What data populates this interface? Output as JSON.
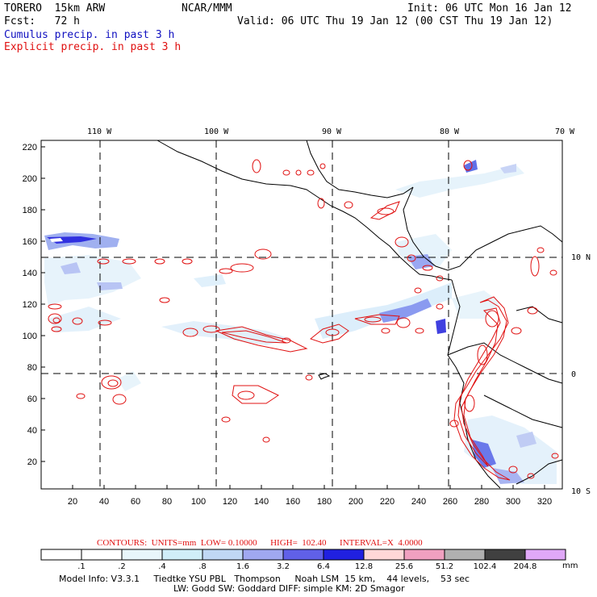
{
  "header": {
    "model": "TORERO  15km ARW",
    "org": "NCAR/MMM",
    "init": "Init: 06 UTC Mon 16 Jan 12",
    "fcst": "Fcst:   72 h",
    "valid": "Valid: 06 UTC Thu 19 Jan 12 (00 CST Thu 19 Jan 12)",
    "legend_cumulus": "Cumulus precip. in past 3 h",
    "legend_explicit": "Explicit precip. in past 3 h"
  },
  "axes": {
    "top_lon_labels": [
      "110 W",
      "100 W",
      "90 W",
      "80 W",
      "70 W"
    ],
    "right_lat_labels": [
      "10 N",
      "0",
      "10 S"
    ],
    "left_ticks": [
      "220",
      "200",
      "180",
      "160",
      "140",
      "120",
      "100",
      "80",
      "60",
      "40",
      "20"
    ],
    "bottom_ticks": [
      "20",
      "40",
      "60",
      "80",
      "100",
      "120",
      "140",
      "160",
      "180",
      "200",
      "220",
      "240",
      "260",
      "280",
      "300",
      "320"
    ]
  },
  "contour_info": "CONTOURS:  UNITS=mm  LOW= 0.10000      HIGH=  102.40      INTERVAL=X  4.0000",
  "colorbar": {
    "labels": [
      ".1",
      ".2",
      ".4",
      ".8",
      "1.6",
      "3.2",
      "6.4",
      "12.8",
      "25.6",
      "51.2",
      "102.4",
      "204.8"
    ],
    "unit": "mm",
    "colors": [
      "#ffffff",
      "#ffffff",
      "#e8f6fb",
      "#d0eef8",
      "#c0d8f4",
      "#a0a8f0",
      "#6060e8",
      "#2020e0",
      "#ffd8d8",
      "#f0a0c0",
      "#b0b0b0",
      "#404040",
      "#e0a8f8"
    ]
  },
  "model_info": {
    "line1": "Model Info: V3.3.1     Tiedtke YSU PBL   Thompson     Noah LSM  15 km,    44 levels,    53 sec",
    "line2": "LW: Godd SW: Goddard DIFF: simple KM: 2D Smagor"
  }
}
